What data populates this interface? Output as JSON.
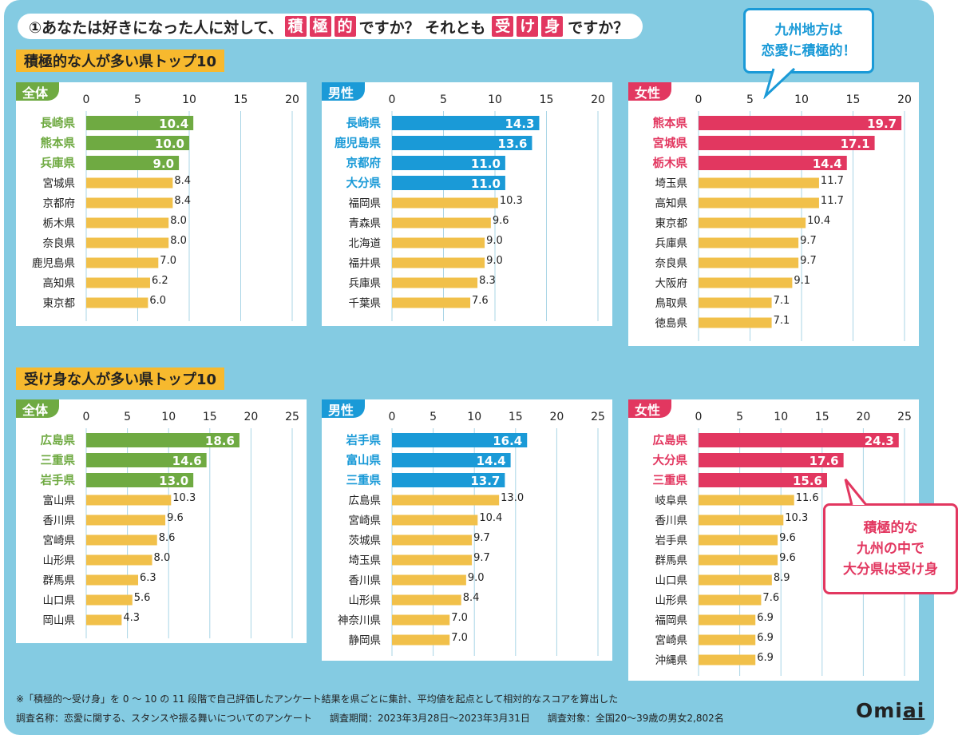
{
  "colors": {
    "background": "#84cbe2",
    "overall": "#6faa42",
    "male": "#1a9ad7",
    "female": "#e23760",
    "other_bar": "#f1c04a",
    "section_bg": "#f7b92e"
  },
  "header": {
    "prefix": "①あなたは好きになった人に対して、",
    "hl1": [
      "積",
      "極",
      "的"
    ],
    "middle": "ですか？ それとも",
    "hl2": [
      "受",
      "け",
      "身"
    ],
    "suffix": "ですか？"
  },
  "callout_top": {
    "line1": "九州地方は",
    "line2": "恋愛に積極的！"
  },
  "callout_bottom": {
    "line1": "積極的な",
    "line2": "九州の中で",
    "line3": "大分県は受け身"
  },
  "sections": {
    "active": {
      "title": "積極的な人が多い県トップ10"
    },
    "passive": {
      "title": "受け身な人が多い県トップ10"
    }
  },
  "chart_data": [
    {
      "type": "bar",
      "orientation": "horizontal",
      "group": "active",
      "tag": "全体",
      "color": "#6faa42",
      "xlim": [
        0,
        20
      ],
      "ticks": [
        "0",
        "5",
        "10",
        "15",
        "20"
      ],
      "highlight_count": 3,
      "categories": [
        "長崎県",
        "熊本県",
        "兵庫県",
        "宮城県",
        "京都府",
        "栃木県",
        "奈良県",
        "鹿児島県",
        "高知県",
        "東京都"
      ],
      "values": [
        10.4,
        10.0,
        9.0,
        8.4,
        8.4,
        8.0,
        8.0,
        7.0,
        6.2,
        6.0
      ],
      "labels": [
        "10.4",
        "10.0",
        "9.0",
        "8.4",
        "8.4",
        "8.0",
        "8.0",
        "7.0",
        "6.2",
        "6.0"
      ]
    },
    {
      "type": "bar",
      "orientation": "horizontal",
      "group": "active",
      "tag": "男性",
      "color": "#1a9ad7",
      "xlim": [
        0,
        20
      ],
      "ticks": [
        "0",
        "5",
        "10",
        "15",
        "20"
      ],
      "highlight_count": 4,
      "categories": [
        "長崎県",
        "鹿児島県",
        "京都府",
        "大分県",
        "福岡県",
        "青森県",
        "北海道",
        "福井県",
        "兵庫県",
        "千葉県"
      ],
      "values": [
        14.3,
        13.6,
        11.0,
        11.0,
        10.3,
        9.6,
        9.0,
        9.0,
        8.3,
        7.6
      ],
      "labels": [
        "14.3",
        "13.6",
        "11.0",
        "11.0",
        "10.3",
        "9.6",
        "9.0",
        "9.0",
        "8.3",
        "7.6"
      ]
    },
    {
      "type": "bar",
      "orientation": "horizontal",
      "group": "active",
      "tag": "女性",
      "color": "#e23760",
      "xlim": [
        0,
        20
      ],
      "ticks": [
        "0",
        "5",
        "10",
        "15",
        "20"
      ],
      "highlight_count": 3,
      "categories": [
        "熊本県",
        "宮城県",
        "栃木県",
        "埼玉県",
        "高知県",
        "東京都",
        "兵庫県",
        "奈良県",
        "大阪府",
        "鳥取県",
        "徳島県"
      ],
      "values": [
        19.7,
        17.1,
        14.4,
        11.7,
        11.7,
        10.4,
        9.7,
        9.7,
        9.1,
        7.1,
        7.1
      ],
      "labels": [
        "19.7",
        "17.1",
        "14.4",
        "11.7",
        "11.7",
        "10.4",
        "9.7",
        "9.7",
        "9.1",
        "7.1",
        "7.1"
      ]
    },
    {
      "type": "bar",
      "orientation": "horizontal",
      "group": "passive",
      "tag": "全体",
      "color": "#6faa42",
      "xlim": [
        0,
        25
      ],
      "ticks": [
        "0",
        "5",
        "10",
        "15",
        "20",
        "25"
      ],
      "highlight_count": 3,
      "categories": [
        "広島県",
        "三重県",
        "岩手県",
        "富山県",
        "香川県",
        "宮崎県",
        "山形県",
        "群馬県",
        "山口県",
        "岡山県"
      ],
      "values": [
        18.6,
        14.6,
        13.0,
        10.3,
        9.6,
        8.6,
        8.0,
        6.3,
        5.6,
        4.3
      ],
      "labels": [
        "18.6",
        "14.6",
        "13.0",
        "10.3",
        "9.6",
        "8.6",
        "8.0",
        "6.3",
        "5.6",
        "4.3"
      ]
    },
    {
      "type": "bar",
      "orientation": "horizontal",
      "group": "passive",
      "tag": "男性",
      "color": "#1a9ad7",
      "xlim": [
        0,
        25
      ],
      "ticks": [
        "0",
        "5",
        "10",
        "15",
        "20",
        "25"
      ],
      "highlight_count": 3,
      "categories": [
        "岩手県",
        "富山県",
        "三重県",
        "広島県",
        "宮崎県",
        "茨城県",
        "埼玉県",
        "香川県",
        "山形県",
        "神奈川県",
        "静岡県"
      ],
      "values": [
        16.4,
        14.4,
        13.7,
        13.0,
        10.4,
        9.7,
        9.7,
        9.0,
        8.4,
        7.0,
        7.0
      ],
      "labels": [
        "16.4",
        "14.4",
        "13.7",
        "13.0",
        "10.4",
        "9.7",
        "9.7",
        "9.0",
        "8.4",
        "7.0",
        "7.0"
      ]
    },
    {
      "type": "bar",
      "orientation": "horizontal",
      "group": "passive",
      "tag": "女性",
      "color": "#e23760",
      "xlim": [
        0,
        25
      ],
      "ticks": [
        "0",
        "5",
        "10",
        "15",
        "20",
        "25"
      ],
      "highlight_count": 3,
      "categories": [
        "広島県",
        "大分県",
        "三重県",
        "岐阜県",
        "香川県",
        "岩手県",
        "群馬県",
        "山口県",
        "山形県",
        "福岡県",
        "宮崎県",
        "沖縄県"
      ],
      "values": [
        24.3,
        17.6,
        15.6,
        11.6,
        10.3,
        9.6,
        9.6,
        8.9,
        7.6,
        6.9,
        6.9,
        6.9
      ],
      "labels": [
        "24.3",
        "17.6",
        "15.6",
        "11.6",
        "10.3",
        "9.6",
        "9.6",
        "8.9",
        "7.6",
        "6.9",
        "6.9",
        "6.9"
      ]
    }
  ],
  "footnote": "※「積極的〜受け身」を 0 〜 10 の 11 段階で自己評価したアンケート結果を県ごとに集計、平均値を起点として相対的なスコアを算出した",
  "footer": {
    "survey_name": "調査名称：恋愛に関する、スタンスや振る舞いについてのアンケート",
    "survey_period": "調査期間：2023年3月28日〜2023年3月31日",
    "survey_target": "調査対象：全国20〜39歳の男女2,802名"
  },
  "brand": {
    "part1": "Omi",
    "part2": "ai"
  }
}
